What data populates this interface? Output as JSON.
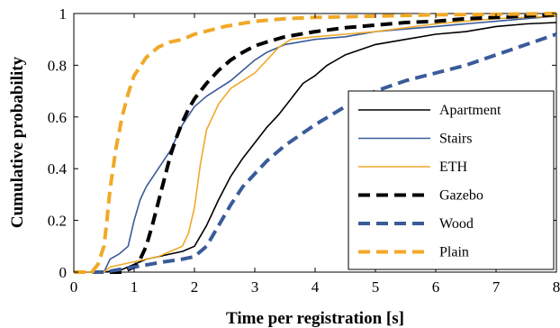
{
  "chart_data": {
    "type": "line",
    "title": "",
    "xlabel": "Time per registration [s]",
    "ylabel": "Cumulative probability",
    "xlim": [
      0,
      8
    ],
    "ylim": [
      0,
      1
    ],
    "xticks": [
      "0",
      "1",
      "2",
      "3",
      "4",
      "5",
      "6",
      "7",
      "8"
    ],
    "yticks": [
      "0",
      "0.2",
      "0.4",
      "0.6",
      "0.8",
      "1"
    ],
    "grid": false,
    "legend_position": "bottom-right",
    "series": [
      {
        "name": "Apartment",
        "color": "#000000",
        "style": "solid",
        "points": [
          [
            0,
            0
          ],
          [
            0.5,
            0
          ],
          [
            0.8,
            0.01
          ],
          [
            1,
            0.03
          ],
          [
            1.2,
            0.05
          ],
          [
            1.4,
            0.06
          ],
          [
            1.6,
            0.07
          ],
          [
            1.8,
            0.08
          ],
          [
            2,
            0.1
          ],
          [
            2.2,
            0.18
          ],
          [
            2.4,
            0.28
          ],
          [
            2.6,
            0.37
          ],
          [
            2.8,
            0.44
          ],
          [
            3,
            0.5
          ],
          [
            3.2,
            0.56
          ],
          [
            3.4,
            0.61
          ],
          [
            3.6,
            0.67
          ],
          [
            3.8,
            0.73
          ],
          [
            4,
            0.76
          ],
          [
            4.2,
            0.8
          ],
          [
            4.5,
            0.84
          ],
          [
            5,
            0.88
          ],
          [
            5.5,
            0.9
          ],
          [
            6,
            0.92
          ],
          [
            6.5,
            0.93
          ],
          [
            7,
            0.95
          ],
          [
            7.5,
            0.96
          ],
          [
            8,
            0.965
          ]
        ]
      },
      {
        "name": "Stairs",
        "color": "#3a5b9a",
        "style": "solid",
        "points": [
          [
            0,
            0
          ],
          [
            0.5,
            0
          ],
          [
            0.6,
            0.05
          ],
          [
            0.75,
            0.07
          ],
          [
            0.9,
            0.1
          ],
          [
            1,
            0.2
          ],
          [
            1.1,
            0.28
          ],
          [
            1.2,
            0.33
          ],
          [
            1.4,
            0.4
          ],
          [
            1.6,
            0.47
          ],
          [
            1.8,
            0.57
          ],
          [
            2,
            0.64
          ],
          [
            2.2,
            0.68
          ],
          [
            2.4,
            0.71
          ],
          [
            2.6,
            0.74
          ],
          [
            2.8,
            0.78
          ],
          [
            3,
            0.82
          ],
          [
            3.2,
            0.85
          ],
          [
            3.5,
            0.88
          ],
          [
            4,
            0.9
          ],
          [
            4.5,
            0.91
          ],
          [
            5,
            0.93
          ],
          [
            5.5,
            0.94
          ],
          [
            6,
            0.95
          ],
          [
            6.5,
            0.96
          ],
          [
            7,
            0.97
          ],
          [
            7.5,
            0.98
          ],
          [
            8,
            0.99
          ]
        ]
      },
      {
        "name": "ETH",
        "color": "#f0a928",
        "style": "solid",
        "points": [
          [
            0,
            0
          ],
          [
            0.5,
            0
          ],
          [
            0.6,
            0.02
          ],
          [
            0.8,
            0.03
          ],
          [
            1,
            0.04
          ],
          [
            1.2,
            0.05
          ],
          [
            1.4,
            0.06
          ],
          [
            1.6,
            0.08
          ],
          [
            1.8,
            0.1
          ],
          [
            1.9,
            0.15
          ],
          [
            2,
            0.25
          ],
          [
            2.1,
            0.42
          ],
          [
            2.2,
            0.55
          ],
          [
            2.4,
            0.65
          ],
          [
            2.6,
            0.71
          ],
          [
            2.8,
            0.74
          ],
          [
            3,
            0.77
          ],
          [
            3.2,
            0.82
          ],
          [
            3.4,
            0.87
          ],
          [
            3.6,
            0.9
          ],
          [
            4,
            0.91
          ],
          [
            4.5,
            0.92
          ],
          [
            5,
            0.93
          ],
          [
            5.5,
            0.945
          ],
          [
            6,
            0.96
          ],
          [
            6.5,
            0.97
          ],
          [
            7,
            0.98
          ],
          [
            7.5,
            0.985
          ],
          [
            8,
            0.99
          ]
        ]
      },
      {
        "name": "Gazebo",
        "color": "#000000",
        "style": "dashed",
        "points": [
          [
            0,
            0
          ],
          [
            0.8,
            0
          ],
          [
            1,
            0.02
          ],
          [
            1.1,
            0.05
          ],
          [
            1.2,
            0.1
          ],
          [
            1.3,
            0.18
          ],
          [
            1.4,
            0.27
          ],
          [
            1.5,
            0.36
          ],
          [
            1.6,
            0.45
          ],
          [
            1.7,
            0.52
          ],
          [
            1.8,
            0.58
          ],
          [
            1.9,
            0.63
          ],
          [
            2,
            0.67
          ],
          [
            2.2,
            0.73
          ],
          [
            2.4,
            0.78
          ],
          [
            2.6,
            0.82
          ],
          [
            2.8,
            0.85
          ],
          [
            3,
            0.875
          ],
          [
            3.2,
            0.89
          ],
          [
            3.5,
            0.91
          ],
          [
            4,
            0.93
          ],
          [
            4.5,
            0.945
          ],
          [
            5,
            0.955
          ],
          [
            5.5,
            0.965
          ],
          [
            6,
            0.97
          ],
          [
            6.5,
            0.98
          ],
          [
            7,
            0.985
          ],
          [
            7.5,
            0.99
          ],
          [
            8,
            0.995
          ]
        ]
      },
      {
        "name": "Wood",
        "color": "#3a5b9a",
        "style": "dashed",
        "points": [
          [
            0,
            0
          ],
          [
            0.5,
            0
          ],
          [
            1,
            0.02
          ],
          [
            1.5,
            0.04
          ],
          [
            1.8,
            0.05
          ],
          [
            2,
            0.06
          ],
          [
            2.2,
            0.1
          ],
          [
            2.4,
            0.18
          ],
          [
            2.6,
            0.26
          ],
          [
            2.8,
            0.33
          ],
          [
            3,
            0.38
          ],
          [
            3.2,
            0.43
          ],
          [
            3.5,
            0.49
          ],
          [
            4,
            0.57
          ],
          [
            4.5,
            0.64
          ],
          [
            5,
            0.7
          ],
          [
            5.5,
            0.74
          ],
          [
            6,
            0.77
          ],
          [
            6.5,
            0.8
          ],
          [
            7,
            0.84
          ],
          [
            7.5,
            0.88
          ],
          [
            8,
            0.92
          ]
        ]
      },
      {
        "name": "Plain",
        "color": "#f0a928",
        "style": "dashed",
        "points": [
          [
            0,
            0
          ],
          [
            0.3,
            0
          ],
          [
            0.4,
            0.03
          ],
          [
            0.5,
            0.1
          ],
          [
            0.55,
            0.2
          ],
          [
            0.6,
            0.32
          ],
          [
            0.7,
            0.48
          ],
          [
            0.8,
            0.6
          ],
          [
            0.9,
            0.69
          ],
          [
            1,
            0.76
          ],
          [
            1.2,
            0.83
          ],
          [
            1.4,
            0.87
          ],
          [
            1.6,
            0.89
          ],
          [
            1.8,
            0.9
          ],
          [
            2,
            0.92
          ],
          [
            2.5,
            0.95
          ],
          [
            3,
            0.97
          ],
          [
            3.5,
            0.98
          ],
          [
            4,
            0.985
          ],
          [
            5,
            0.99
          ],
          [
            6,
            0.995
          ],
          [
            7,
            0.997
          ],
          [
            8,
            1
          ]
        ]
      }
    ]
  }
}
